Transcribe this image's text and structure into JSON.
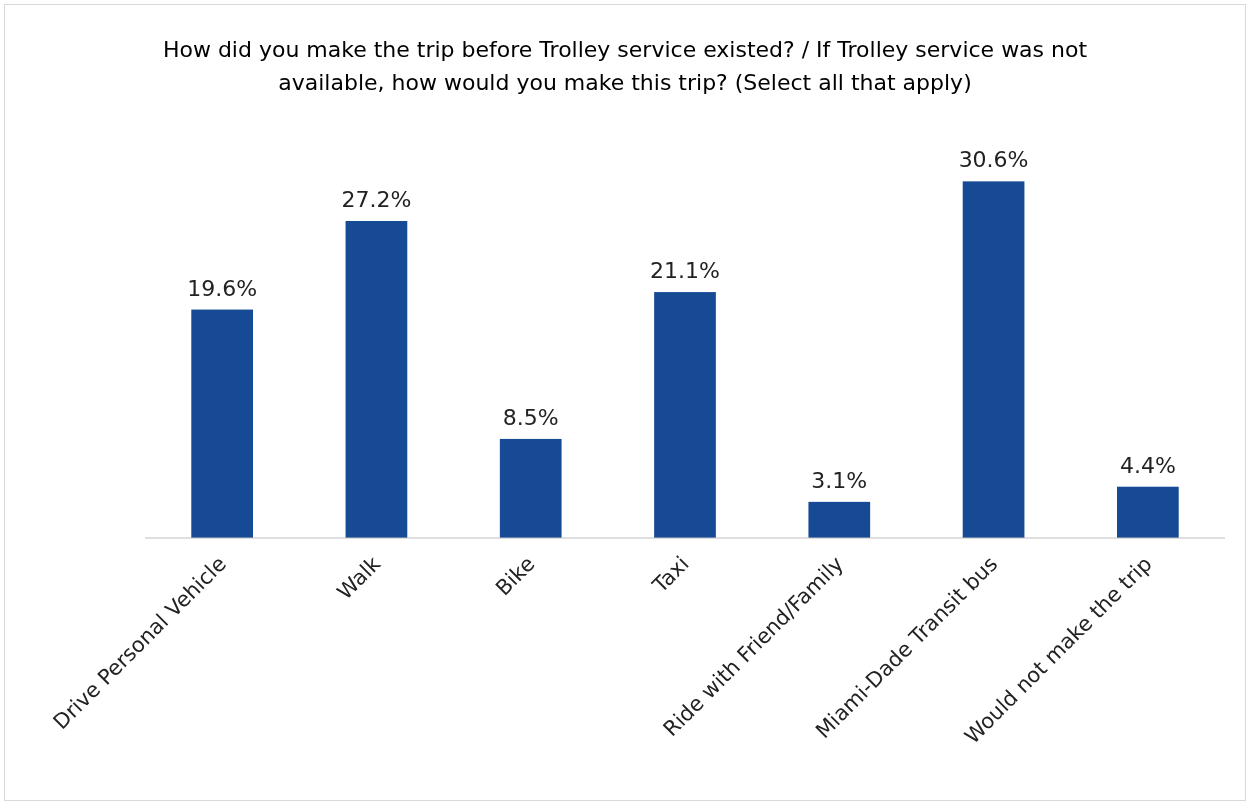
{
  "chart_data": {
    "type": "bar",
    "title": "How did you make the trip before Trolley service existed? / If Trolley service was not  available, how would you make this trip? (Select all that apply)",
    "categories": [
      "Drive Personal Vehicle",
      "Walk",
      "Bike",
      "Taxi",
      "Ride with Friend/Family",
      "Miami-Dade Transit bus",
      "Would not make the trip"
    ],
    "values": [
      19.6,
      27.2,
      8.5,
      21.1,
      3.1,
      30.6,
      4.4
    ],
    "value_labels": [
      "19.6%",
      "27.2%",
      "8.5%",
      "21.1%",
      "3.1%",
      "30.6%",
      "4.4%"
    ],
    "color": "#174a94",
    "grid": false,
    "legend": false
  }
}
